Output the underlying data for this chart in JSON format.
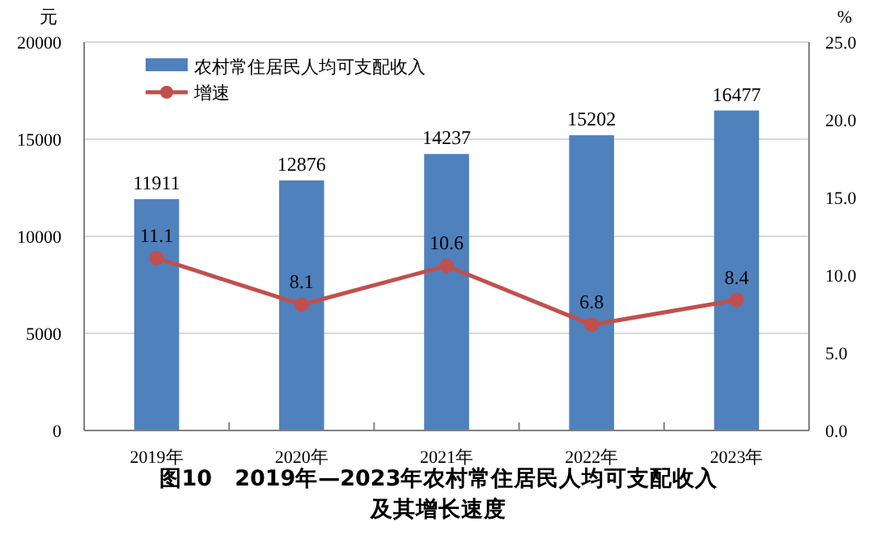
{
  "chart_data": {
    "type": "bar",
    "title": "图10　2019年—2023年农村常住居民人均可支配收入及其增长速度",
    "ylabel": "元",
    "y2label": "%",
    "categories": [
      "2019年",
      "2020年",
      "2021年",
      "2022年",
      "2023年"
    ],
    "series": [
      {
        "name": "农村常住居民人均可支配收入",
        "color": "#4f81bd",
        "values": [
          11911,
          12876,
          14237,
          15202,
          16477
        ]
      },
      {
        "name": "增速",
        "type": "line",
        "axis": "y2",
        "color": "#c0504d",
        "marker": "circle",
        "values": [
          11.1,
          8.1,
          10.6,
          6.8,
          8.4
        ]
      }
    ],
    "ylim": [
      0,
      20000
    ],
    "yticks": [
      0,
      5000,
      10000,
      15000,
      20000
    ],
    "y2lim": [
      0,
      25
    ],
    "y2ticks": [
      {
        "value": 0,
        "label": "0.0"
      },
      {
        "value": 5,
        "label": "5.0"
      },
      {
        "value": 10,
        "label": "10.0"
      },
      {
        "value": 15,
        "label": "15.0"
      },
      {
        "value": 20,
        "label": "20.0"
      },
      {
        "value": 25,
        "label": "25.0"
      }
    ],
    "grid": "y",
    "legend": "top left",
    "data_labels": true
  }
}
